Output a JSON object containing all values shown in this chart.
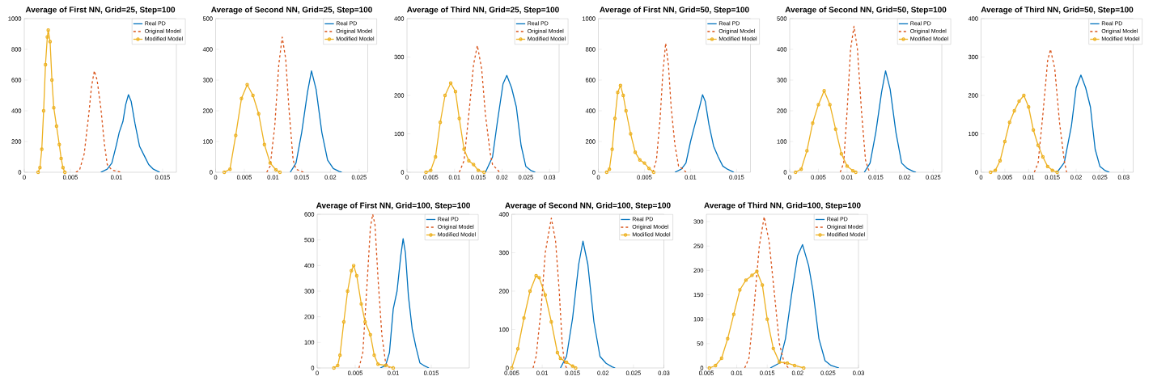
{
  "chart_data": [
    {
      "type": "line",
      "title": "Average of First NN, Grid=25, Step=100",
      "xlim": [
        0,
        0.0165
      ],
      "ylim": [
        0,
        1000
      ],
      "xticks": [
        0,
        0.005,
        0.01,
        0.015
      ],
      "yticks": [
        0,
        200,
        400,
        600,
        800,
        1000
      ],
      "legend": "top right",
      "series": [
        {
          "name": "Real PD",
          "color": "#0072bd",
          "line_style": "solid",
          "marker": "none",
          "x": [
            0.0083,
            0.009,
            0.0095,
            0.01,
            0.0103,
            0.0107,
            0.011,
            0.0113,
            0.0116,
            0.012,
            0.0125,
            0.013,
            0.0135,
            0.014,
            0.0147
          ],
          "values": [
            0,
            20,
            60,
            180,
            260,
            330,
            440,
            505,
            460,
            320,
            170,
            110,
            50,
            20,
            0
          ]
        },
        {
          "name": "Original Model",
          "color": "#d95319",
          "line_style": "dashed",
          "marker": "none",
          "x": [
            0.0056,
            0.006,
            0.0065,
            0.007,
            0.0073,
            0.0076,
            0.0079,
            0.0083,
            0.0087,
            0.009,
            0.0095,
            0.0105
          ],
          "values": [
            0,
            15,
            120,
            380,
            560,
            660,
            600,
            420,
            180,
            50,
            15,
            0
          ]
        },
        {
          "name": "Modified Model",
          "color": "#edb120",
          "line_style": "solid",
          "marker": "circle",
          "x": [
            0.0015,
            0.0017,
            0.0019,
            0.0021,
            0.0023,
            0.0025,
            0.0026,
            0.0028,
            0.003,
            0.0032,
            0.0035,
            0.0038,
            0.004,
            0.0042,
            0.0044
          ],
          "values": [
            0,
            30,
            150,
            400,
            700,
            880,
            925,
            850,
            600,
            420,
            300,
            180,
            90,
            30,
            0
          ]
        }
      ]
    },
    {
      "type": "line",
      "title": "Average of Second NN, Grid=25, Step=100",
      "xlim": [
        0,
        0.0265
      ],
      "ylim": [
        0,
        500
      ],
      "xticks": [
        0,
        0.005,
        0.01,
        0.015,
        0.02,
        0.025
      ],
      "yticks": [
        0,
        100,
        200,
        300,
        400,
        500
      ],
      "legend": "top right",
      "series": [
        {
          "name": "Real PD",
          "color": "#0072bd",
          "line_style": "solid",
          "marker": "none",
          "x": [
            0.013,
            0.014,
            0.015,
            0.016,
            0.0167,
            0.0175,
            0.0185,
            0.0195,
            0.0205,
            0.0215,
            0.022
          ],
          "values": [
            0,
            30,
            130,
            260,
            330,
            270,
            130,
            40,
            12,
            3,
            0
          ]
        },
        {
          "name": "Original Model",
          "color": "#d95319",
          "line_style": "dashed",
          "marker": "none",
          "x": [
            0.0089,
            0.0095,
            0.0103,
            0.011,
            0.0116,
            0.0122,
            0.0128,
            0.0135,
            0.014,
            0.0153
          ],
          "values": [
            0,
            20,
            150,
            350,
            440,
            370,
            200,
            40,
            10,
            0
          ]
        },
        {
          "name": "Modified Model",
          "color": "#edb120",
          "line_style": "solid",
          "marker": "circle",
          "x": [
            0.0015,
            0.0025,
            0.0035,
            0.0045,
            0.0055,
            0.0065,
            0.0075,
            0.0085,
            0.0095,
            0.0105,
            0.0112
          ],
          "values": [
            0,
            10,
            120,
            240,
            285,
            250,
            190,
            90,
            30,
            8,
            0
          ]
        }
      ]
    },
    {
      "type": "line",
      "title": "Average of Third NN, Grid=25, Step=100",
      "xlim": [
        0,
        0.032
      ],
      "ylim": [
        0,
        400
      ],
      "xticks": [
        0,
        0.005,
        0.01,
        0.015,
        0.02,
        0.025,
        0.03
      ],
      "yticks": [
        0,
        100,
        200,
        300,
        400
      ],
      "legend": "top right",
      "series": [
        {
          "name": "Real PD",
          "color": "#0072bd",
          "line_style": "solid",
          "marker": "none",
          "x": [
            0.0165,
            0.018,
            0.019,
            0.0202,
            0.021,
            0.022,
            0.023,
            0.024,
            0.025,
            0.026,
            0.027
          ],
          "values": [
            0,
            40,
            130,
            230,
            252,
            220,
            170,
            70,
            15,
            5,
            0
          ]
        },
        {
          "name": "Original Model",
          "color": "#d95319",
          "line_style": "dashed",
          "marker": "none",
          "x": [
            0.011,
            0.012,
            0.013,
            0.014,
            0.0148,
            0.0157,
            0.0165,
            0.0175,
            0.018,
            0.0195
          ],
          "values": [
            0,
            30,
            150,
            280,
            330,
            270,
            150,
            50,
            20,
            0
          ]
        },
        {
          "name": "Modified Model",
          "color": "#edb120",
          "line_style": "solid",
          "marker": "circle",
          "x": [
            0.004,
            0.005,
            0.006,
            0.007,
            0.008,
            0.0092,
            0.0102,
            0.011,
            0.012,
            0.013,
            0.014,
            0.015,
            0.0162
          ],
          "values": [
            0,
            5,
            40,
            130,
            200,
            232,
            210,
            140,
            60,
            30,
            20,
            5,
            0
          ]
        }
      ]
    },
    {
      "type": "line",
      "title": "Average of First NN, Grid=50, Step=100",
      "xlim": [
        0,
        0.0165
      ],
      "ylim": [
        0,
        1000
      ],
      "xticks": [
        0,
        0.005,
        0.01,
        0.015
      ],
      "yticks": [
        0,
        200,
        400,
        600,
        800,
        1000
      ],
      "legend": "top right",
      "series": [
        {
          "name": "Real PD",
          "color": "#0072bd",
          "line_style": "solid",
          "marker": "none",
          "x": [
            0.0083,
            0.009,
            0.0095,
            0.01,
            0.0103,
            0.011,
            0.0113,
            0.0116,
            0.012,
            0.0125,
            0.013,
            0.0135,
            0.014,
            0.0147
          ],
          "values": [
            0,
            20,
            60,
            200,
            270,
            430,
            505,
            460,
            310,
            170,
            100,
            40,
            20,
            0
          ]
        },
        {
          "name": "Original Model",
          "color": "#d95319",
          "line_style": "dashed",
          "marker": "none",
          "x": [
            0.0059,
            0.0063,
            0.0067,
            0.007,
            0.0073,
            0.0076,
            0.0079,
            0.0083,
            0.0087,
            0.0092,
            0.0095
          ],
          "values": [
            0,
            80,
            350,
            650,
            840,
            700,
            420,
            180,
            40,
            20,
            0
          ]
        },
        {
          "name": "Modified Model",
          "color": "#edb120",
          "line_style": "solid",
          "marker": "circle",
          "x": [
            0.0009,
            0.0012,
            0.0015,
            0.0018,
            0.0021,
            0.0024,
            0.0027,
            0.003,
            0.0035,
            0.004,
            0.0045,
            0.005,
            0.0055,
            0.006
          ],
          "values": [
            0,
            20,
            150,
            350,
            520,
            565,
            500,
            400,
            250,
            130,
            80,
            60,
            25,
            0
          ]
        }
      ]
    },
    {
      "type": "line",
      "title": "Average of Second NN, Grid=50, Step=100",
      "xlim": [
        0,
        0.0265
      ],
      "ylim": [
        0,
        500
      ],
      "xticks": [
        0,
        0.005,
        0.01,
        0.015,
        0.02,
        0.025
      ],
      "yticks": [
        0,
        100,
        200,
        300,
        400,
        500
      ],
      "legend": "top right",
      "series": [
        {
          "name": "Real PD",
          "color": "#0072bd",
          "line_style": "solid",
          "marker": "none",
          "x": [
            0.013,
            0.014,
            0.015,
            0.016,
            0.0167,
            0.0175,
            0.0185,
            0.0195,
            0.0205,
            0.0215,
            0.022
          ],
          "values": [
            0,
            30,
            130,
            260,
            330,
            270,
            130,
            30,
            12,
            3,
            0
          ]
        },
        {
          "name": "Original Model",
          "color": "#d95319",
          "line_style": "dashed",
          "marker": "none",
          "x": [
            0.0088,
            0.0094,
            0.01,
            0.0106,
            0.0112,
            0.0118,
            0.0125,
            0.0132,
            0.0137,
            0.014
          ],
          "values": [
            0,
            30,
            200,
            400,
            475,
            400,
            200,
            40,
            10,
            0
          ]
        },
        {
          "name": "Modified Model",
          "color": "#edb120",
          "line_style": "solid",
          "marker": "circle",
          "x": [
            0.001,
            0.002,
            0.003,
            0.004,
            0.005,
            0.006,
            0.007,
            0.008,
            0.009,
            0.01,
            0.011,
            0.0115
          ],
          "values": [
            0,
            10,
            70,
            160,
            220,
            265,
            220,
            140,
            60,
            20,
            5,
            0
          ]
        }
      ]
    },
    {
      "type": "line",
      "title": "Average of Third NN, Grid=50, Step=100",
      "xlim": [
        0,
        0.032
      ],
      "ylim": [
        0,
        400
      ],
      "xticks": [
        0,
        0.005,
        0.01,
        0.015,
        0.02,
        0.025,
        0.03
      ],
      "yticks": [
        0,
        100,
        200,
        300,
        400
      ],
      "legend": "top right",
      "series": [
        {
          "name": "Real PD",
          "color": "#0072bd",
          "line_style": "solid",
          "marker": "none",
          "x": [
            0.016,
            0.0175,
            0.019,
            0.02,
            0.021,
            0.022,
            0.023,
            0.024,
            0.025,
            0.026,
            0.027
          ],
          "values": [
            0,
            25,
            120,
            220,
            253,
            220,
            170,
            60,
            15,
            5,
            0
          ]
        },
        {
          "name": "Original Model",
          "color": "#d95319",
          "line_style": "dashed",
          "marker": "none",
          "x": [
            0.0112,
            0.012,
            0.013,
            0.014,
            0.0146,
            0.0155,
            0.0165,
            0.0175,
            0.018
          ],
          "values": [
            0,
            25,
            150,
            290,
            320,
            270,
            130,
            30,
            0
          ]
        },
        {
          "name": "Modified Model",
          "color": "#edb120",
          "line_style": "solid",
          "marker": "circle",
          "x": [
            0.002,
            0.003,
            0.004,
            0.005,
            0.006,
            0.007,
            0.008,
            0.009,
            0.01,
            0.011,
            0.012,
            0.013,
            0.014,
            0.015,
            0.016
          ],
          "values": [
            0,
            5,
            30,
            80,
            130,
            160,
            185,
            200,
            170,
            110,
            70,
            40,
            15,
            5,
            0
          ]
        }
      ]
    },
    {
      "type": "line",
      "title": "Average of First NN, Grid=100, Step=100",
      "xlim": [
        0,
        0.02
      ],
      "ylim": [
        0,
        600
      ],
      "xticks": [
        0,
        0.005,
        0.01,
        0.015
      ],
      "yticks": [
        0,
        100,
        200,
        300,
        400,
        500,
        600
      ],
      "legend": "top right",
      "series": [
        {
          "name": "Real PD",
          "color": "#0072bd",
          "line_style": "solid",
          "marker": "none",
          "x": [
            0.0083,
            0.009,
            0.0095,
            0.01,
            0.0105,
            0.011,
            0.0113,
            0.0116,
            0.012,
            0.0125,
            0.013,
            0.0135,
            0.014,
            0.0147
          ],
          "values": [
            0,
            10,
            60,
            230,
            300,
            440,
            505,
            450,
            280,
            150,
            80,
            20,
            10,
            0
          ]
        },
        {
          "name": "Original Model",
          "color": "#d95319",
          "line_style": "dashed",
          "marker": "none",
          "x": [
            0.0055,
            0.006,
            0.0065,
            0.007,
            0.0073,
            0.0076,
            0.008,
            0.0085,
            0.009,
            0.0095
          ],
          "values": [
            0,
            60,
            300,
            550,
            600,
            560,
            350,
            130,
            20,
            0
          ]
        },
        {
          "name": "Modified Model",
          "color": "#edb120",
          "line_style": "solid",
          "marker": "circle",
          "x": [
            0.0022,
            0.0027,
            0.003,
            0.0035,
            0.004,
            0.0045,
            0.0048,
            0.0052,
            0.0058,
            0.0063,
            0.007,
            0.0075,
            0.008,
            0.009,
            0.01
          ],
          "values": [
            0,
            10,
            50,
            180,
            300,
            380,
            400,
            360,
            250,
            180,
            130,
            50,
            15,
            10,
            0
          ]
        }
      ]
    },
    {
      "type": "line",
      "title": "Average of Second NN, Grid=100, Step=100",
      "xlim": [
        0.005,
        0.03
      ],
      "ylim": [
        0,
        400
      ],
      "xticks": [
        0.005,
        0.01,
        0.015,
        0.02,
        0.025,
        0.03
      ],
      "yticks": [
        0,
        100,
        200,
        300,
        400
      ],
      "legend": "top right",
      "series": [
        {
          "name": "Real PD",
          "color": "#0072bd",
          "line_style": "solid",
          "marker": "none",
          "x": [
            0.013,
            0.014,
            0.015,
            0.016,
            0.0167,
            0.0175,
            0.0185,
            0.0195,
            0.0205,
            0.0215,
            0.022
          ],
          "values": [
            0,
            30,
            130,
            270,
            330,
            270,
            120,
            30,
            12,
            3,
            0
          ]
        },
        {
          "name": "Original Model",
          "color": "#d95319",
          "line_style": "dashed",
          "marker": "none",
          "x": [
            0.0085,
            0.009,
            0.0098,
            0.0105,
            0.0115,
            0.0122,
            0.0128,
            0.0133,
            0.0137,
            0.014
          ],
          "values": [
            0,
            30,
            150,
            300,
            390,
            330,
            200,
            60,
            10,
            0
          ]
        },
        {
          "name": "Modified Model",
          "color": "#edb120",
          "line_style": "solid",
          "marker": "circle",
          "x": [
            0.005,
            0.006,
            0.007,
            0.008,
            0.009,
            0.0095,
            0.0105,
            0.0115,
            0.0125,
            0.013,
            0.014,
            0.015,
            0.0155
          ],
          "values": [
            0,
            50,
            130,
            200,
            240,
            235,
            190,
            120,
            40,
            25,
            15,
            5,
            0
          ]
        }
      ]
    },
    {
      "type": "line",
      "title": "Average of Third NN, Grid=100, Step=100",
      "xlim": [
        0.005,
        0.03
      ],
      "ylim": [
        0,
        315
      ],
      "xticks": [
        0.005,
        0.01,
        0.015,
        0.02,
        0.025,
        0.03
      ],
      "yticks": [
        0,
        50,
        100,
        150,
        200,
        250,
        300
      ],
      "legend": "top right",
      "series": [
        {
          "name": "Real PD",
          "color": "#0072bd",
          "line_style": "solid",
          "marker": "none",
          "x": [
            0.0155,
            0.017,
            0.018,
            0.019,
            0.02,
            0.0208,
            0.0218,
            0.0225,
            0.0235,
            0.0245,
            0.0255,
            0.0268
          ],
          "values": [
            0,
            10,
            60,
            150,
            230,
            253,
            210,
            160,
            60,
            15,
            5,
            0
          ]
        },
        {
          "name": "Original Model",
          "color": "#d95319",
          "line_style": "dashed",
          "marker": "none",
          "x": [
            0.0113,
            0.012,
            0.0128,
            0.0137,
            0.0145,
            0.0153,
            0.0162,
            0.017,
            0.0178,
            0.0185
          ],
          "values": [
            0,
            20,
            120,
            250,
            310,
            260,
            150,
            50,
            10,
            0
          ]
        },
        {
          "name": "Modified Model",
          "color": "#edb120",
          "line_style": "solid",
          "marker": "circle",
          "x": [
            0.0055,
            0.0065,
            0.0075,
            0.0085,
            0.0095,
            0.0105,
            0.0115,
            0.0125,
            0.0133,
            0.0142,
            0.015,
            0.016,
            0.017,
            0.0183,
            0.0195,
            0.021
          ],
          "values": [
            0,
            5,
            20,
            60,
            110,
            160,
            180,
            190,
            198,
            170,
            100,
            40,
            12,
            10,
            5,
            0
          ]
        }
      ]
    }
  ]
}
